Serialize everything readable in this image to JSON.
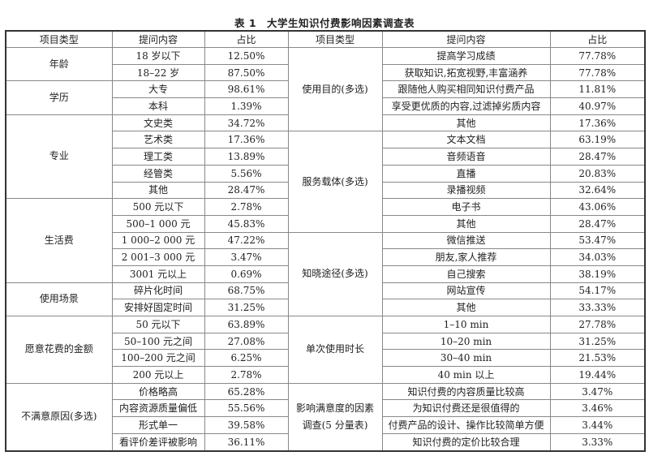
{
  "title": "表 1　大学生知识付费影响因素调查表",
  "headers": [
    "项目类型",
    "提问内容",
    "占比",
    "项目类型",
    "提问内容",
    "占比"
  ],
  "left_groups": [
    {
      "category": "年龄",
      "items": [
        {
          "question": "18 岁以下",
          "ratio": "12.50%"
        },
        {
          "question": "18–22 岁",
          "ratio": "87.50%"
        }
      ]
    },
    {
      "category": "学历",
      "items": [
        {
          "question": "大专",
          "ratio": "98.61%"
        },
        {
          "question": "本科",
          "ratio": "1.39%"
        }
      ]
    },
    {
      "category": "专业",
      "items": [
        {
          "question": "文史类",
          "ratio": "34.72%"
        },
        {
          "question": "艺术类",
          "ratio": "17.36%"
        },
        {
          "question": "理工类",
          "ratio": "13.89%"
        },
        {
          "question": "经管类",
          "ratio": "5.56%"
        },
        {
          "question": "其他",
          "ratio": "28.47%"
        }
      ]
    },
    {
      "category": "生活费",
      "items": [
        {
          "question": "500 元以下",
          "ratio": "2.78%"
        },
        {
          "question": "500–1 000 元",
          "ratio": "45.83%"
        },
        {
          "question": "1 000–2 000 元",
          "ratio": "47.22%"
        },
        {
          "question": "2 001–3 000 元",
          "ratio": "3.47%"
        },
        {
          "question": "3001 元以上",
          "ratio": "0.69%"
        }
      ]
    },
    {
      "category": "使用场景",
      "items": [
        {
          "question": "碎片化时间",
          "ratio": "68.75%"
        },
        {
          "question": "安排好固定时间",
          "ratio": "31.25%"
        }
      ]
    },
    {
      "category": "愿意花费的金额",
      "items": [
        {
          "question": "50 元以下",
          "ratio": "63.89%"
        },
        {
          "question": "50–100 元之间",
          "ratio": "27.08%"
        },
        {
          "question": "100–200 元之间",
          "ratio": "6.25%"
        },
        {
          "question": "200 元以上",
          "ratio": "2.78%"
        }
      ]
    },
    {
      "category": "不满意原因(多选)",
      "items": [
        {
          "question": "价格略高",
          "ratio": "65.28%"
        },
        {
          "question": "内容资源质量偏低",
          "ratio": "55.56%"
        },
        {
          "question": "形式单一",
          "ratio": "39.58%"
        },
        {
          "question": "看评价差评被影响",
          "ratio": "36.11%"
        }
      ]
    }
  ],
  "right_groups": [
    {
      "category": "使用目的(多选)",
      "items": [
        {
          "question": "提高学习成绩",
          "ratio": "77.78%"
        },
        {
          "question": "获取知识,拓宽视野,丰富涵养",
          "ratio": "77.78%"
        },
        {
          "question": "跟随他人购买相同知识付费产品",
          "ratio": "11.81%"
        },
        {
          "question": "享受更优质的内容,过滤掉劣质内容",
          "ratio": "40.97%"
        },
        {
          "question": "其他",
          "ratio": "17.36%"
        }
      ]
    },
    {
      "category": "服务载体(多选)",
      "items": [
        {
          "question": "文本文档",
          "ratio": "63.19%"
        },
        {
          "question": "音频语音",
          "ratio": "28.47%"
        },
        {
          "question": "直播",
          "ratio": "20.83%"
        },
        {
          "question": "录播视频",
          "ratio": "32.64%"
        },
        {
          "question": "电子书",
          "ratio": "43.06%"
        },
        {
          "question": "其他",
          "ratio": "28.47%"
        }
      ]
    },
    {
      "category": "知晓途径(多选)",
      "items": [
        {
          "question": "微信推送",
          "ratio": "53.47%"
        },
        {
          "question": "朋友,家人推荐",
          "ratio": "34.03%"
        },
        {
          "question": "自己搜索",
          "ratio": "38.19%"
        },
        {
          "question": "网站宣传",
          "ratio": "54.17%"
        },
        {
          "question": "其他",
          "ratio": "33.33%"
        }
      ]
    },
    {
      "category": "单次使用时长",
      "items": [
        {
          "question": "1–10 min",
          "ratio": "27.78%"
        },
        {
          "question": "10–20 min",
          "ratio": "31.25%"
        },
        {
          "question": "30–40 min",
          "ratio": "21.53%"
        },
        {
          "question": "40 min 以上",
          "ratio": "19.44%"
        }
      ]
    },
    {
      "category": "影响满意度的因素调查(5 分量表)",
      "items": [
        {
          "question": "知识付费的内容质量比较高",
          "ratio": "3.47%"
        },
        {
          "question": "为知识付费还是很值得的",
          "ratio": "3.46%"
        },
        {
          "question": "付费产品的设计、操作比较简单方便",
          "ratio": "3.44%"
        },
        {
          "question": "知识付费的定价比较合理",
          "ratio": "3.33%"
        }
      ]
    }
  ]
}
